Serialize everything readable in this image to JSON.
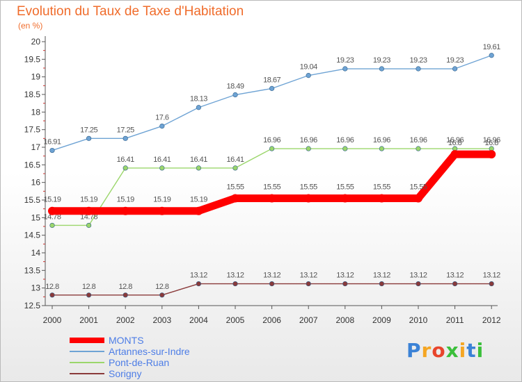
{
  "header": {
    "title": "Evolution du Taux de Taxe d'Habitation",
    "subtitle": "(en %)"
  },
  "logo": {
    "letters": [
      "P",
      "r",
      "o",
      "x",
      "i",
      "t",
      "i"
    ],
    "colors": [
      "#3b82d6",
      "#f5a623",
      "#e8452c",
      "#3bbf3b",
      "#f5a623",
      "#3b82d6",
      "#3bbf3b"
    ]
  },
  "chart_data": {
    "type": "line",
    "title": "Evolution du Taux de Taxe d'Habitation",
    "subtitle": "(en %)",
    "xlabel": "",
    "ylabel": "",
    "categories": [
      "2000",
      "2001",
      "2002",
      "2003",
      "2004",
      "2005",
      "2006",
      "2007",
      "2008",
      "2009",
      "2010",
      "2011",
      "2012"
    ],
    "ylim": [
      12.5,
      20
    ],
    "yticks": [
      "12.5",
      "13",
      "13.5",
      "14",
      "14.5",
      "15",
      "15.5",
      "16",
      "16.5",
      "17",
      "17.5",
      "18",
      "18.5",
      "19",
      "19.5",
      "20"
    ],
    "grid": false,
    "legend_position": "bottom-left",
    "series": [
      {
        "name": "Artannes-sur-Indre",
        "color": "#6ea3d4",
        "values": [
          16.91,
          17.25,
          17.25,
          17.6,
          18.13,
          18.49,
          18.67,
          19.04,
          19.23,
          19.23,
          19.23,
          19.23,
          19.61
        ],
        "labels": [
          "16.91",
          "17.25",
          "17.25",
          "17.6",
          "18.13",
          "18.49",
          "18.67",
          "19.04",
          "19.23",
          "19.23",
          "19.23",
          "19.23",
          "19.61"
        ]
      },
      {
        "name": "Pont-de-Ruan",
        "color": "#9bd66b",
        "values": [
          14.78,
          14.78,
          16.41,
          16.41,
          16.41,
          16.41,
          16.96,
          16.96,
          16.96,
          16.96,
          16.96,
          16.96,
          16.96
        ],
        "labels": [
          "14.78",
          "14.78",
          "16.41",
          "16.41",
          "16.41",
          "16.41",
          "16.96",
          "16.96",
          "16.96",
          "16.96",
          "16.96",
          "16.96",
          "16.96"
        ]
      },
      {
        "name": "Sorigny",
        "color": "#8a3a3a",
        "values": [
          12.8,
          12.8,
          12.8,
          12.8,
          13.12,
          13.12,
          13.12,
          13.12,
          13.12,
          13.12,
          13.12,
          13.12,
          13.12
        ],
        "labels": [
          "12.8",
          "12.8",
          "12.8",
          "12.8",
          "13.12",
          "13.12",
          "13.12",
          "13.12",
          "13.12",
          "13.12",
          "13.12",
          "13.12",
          "13.12"
        ]
      },
      {
        "name": "MONTS",
        "color": "#ff0000",
        "emphasis": true,
        "values": [
          15.19,
          15.19,
          15.19,
          15.19,
          15.19,
          15.55,
          15.55,
          15.55,
          15.55,
          15.55,
          15.55,
          16.8,
          16.8
        ],
        "labels": [
          "15.19",
          "15.19",
          "15.19",
          "15.19",
          "15.19",
          "15.55",
          "15.55",
          "15.55",
          "15.55",
          "15.55",
          "15.55",
          "16.8",
          "16.8"
        ]
      }
    ],
    "legend_order": [
      "MONTS",
      "Artannes-sur-Indre",
      "Pont-de-Ruan",
      "Sorigny"
    ]
  }
}
